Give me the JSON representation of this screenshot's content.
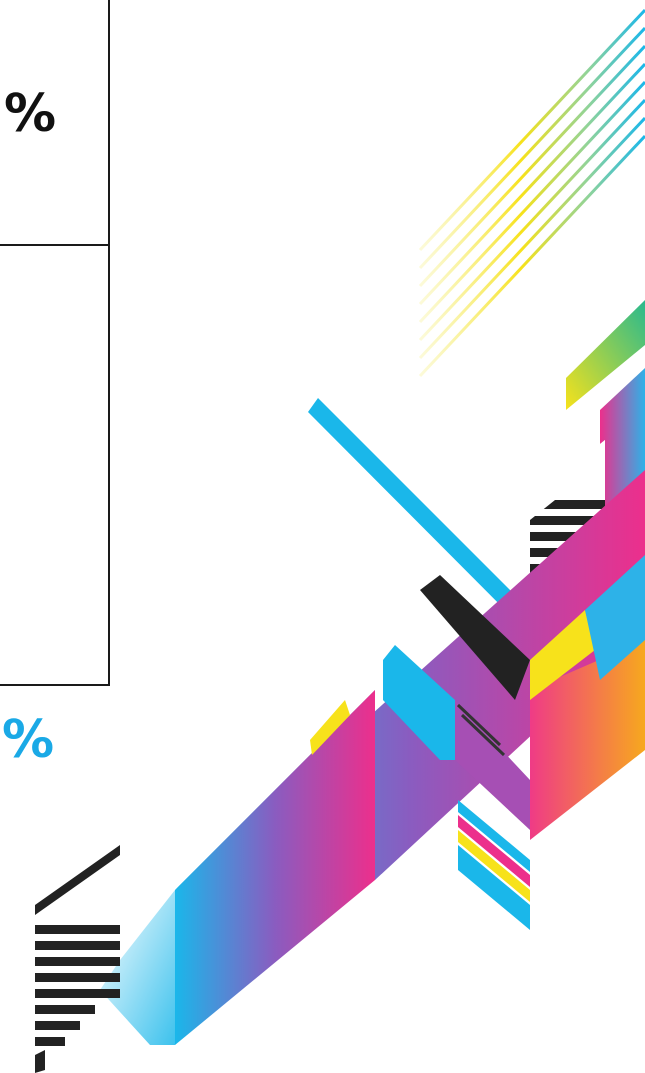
{
  "table": {
    "cells": [
      {
        "value": "%",
        "color": "#111111"
      },
      {
        "value": "%",
        "color": "#1aa9e6"
      }
    ]
  },
  "decoration": {
    "description_icon": "abstract-geometric-stripes-art",
    "palette": [
      "#1ab7ea",
      "#e8318e",
      "#f7e21b",
      "#222222",
      "#7c5bbf"
    ]
  }
}
